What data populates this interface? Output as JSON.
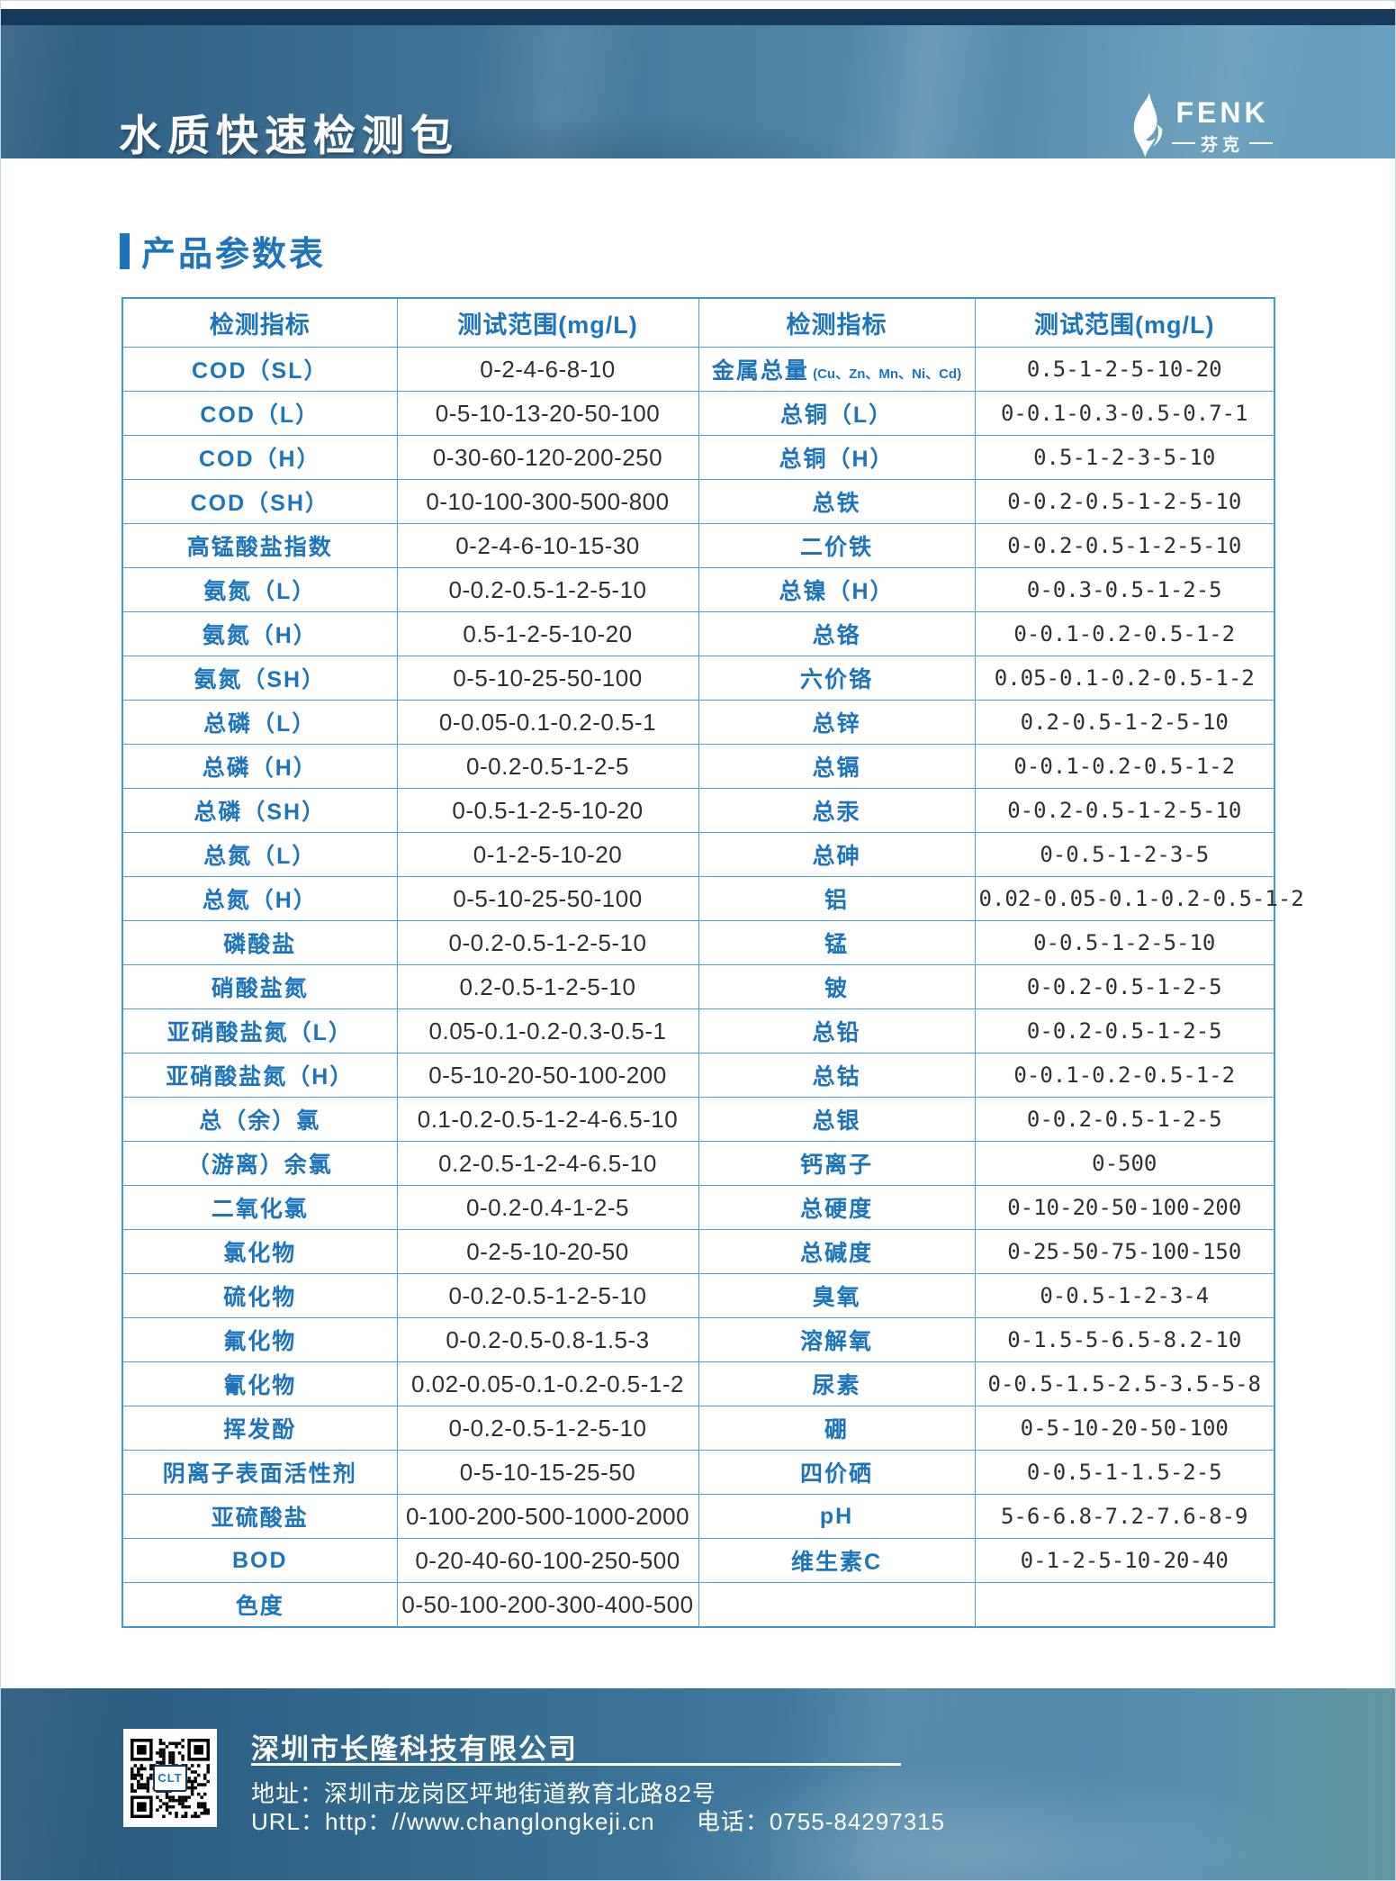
{
  "header": {
    "title": "水质快速检测包",
    "logo": {
      "name": "FENK",
      "subname": "芬克"
    }
  },
  "section": {
    "title": "产品参数表"
  },
  "table": {
    "headers": [
      "检测指标",
      "测试范围(mg/L)",
      "检测指标",
      "测试范围(mg/L)"
    ],
    "rows": [
      {
        "left_label": "COD（SL）",
        "left_range": "0-2-4-6-8-10",
        "right_label": "金属总量",
        "right_label_small": "(Cu、Zn、Mn、Ni、Cd)",
        "right_range": "0.5-1-2-5-10-20"
      },
      {
        "left_label": "COD（L）",
        "left_range": "0-5-10-13-20-50-100",
        "right_label": "总铜（L）",
        "right_label_small": "",
        "right_range": "0-0.1-0.3-0.5-0.7-1"
      },
      {
        "left_label": "COD（H）",
        "left_range": "0-30-60-120-200-250",
        "right_label": "总铜（H）",
        "right_label_small": "",
        "right_range": "0.5-1-2-3-5-10"
      },
      {
        "left_label": "COD（SH）",
        "left_range": "0-10-100-300-500-800",
        "right_label": "总铁",
        "right_label_small": "",
        "right_range": "0-0.2-0.5-1-2-5-10"
      },
      {
        "left_label": "高锰酸盐指数",
        "left_range": "0-2-4-6-10-15-30",
        "right_label": "二价铁",
        "right_label_small": "",
        "right_range": "0-0.2-0.5-1-2-5-10"
      },
      {
        "left_label": "氨氮（L）",
        "left_range": "0-0.2-0.5-1-2-5-10",
        "right_label": "总镍（H）",
        "right_label_small": "",
        "right_range": "0-0.3-0.5-1-2-5"
      },
      {
        "left_label": "氨氮（H）",
        "left_range": "0.5-1-2-5-10-20",
        "right_label": "总铬",
        "right_label_small": "",
        "right_range": "0-0.1-0.2-0.5-1-2"
      },
      {
        "left_label": "氨氮（SH）",
        "left_range": "0-5-10-25-50-100",
        "right_label": "六价铬",
        "right_label_small": "",
        "right_range": "0.05-0.1-0.2-0.5-1-2"
      },
      {
        "left_label": "总磷（L）",
        "left_range": "0-0.05-0.1-0.2-0.5-1",
        "right_label": "总锌",
        "right_label_small": "",
        "right_range": "0.2-0.5-1-2-5-10"
      },
      {
        "left_label": "总磷（H）",
        "left_range": "0-0.2-0.5-1-2-5",
        "right_label": "总镉",
        "right_label_small": "",
        "right_range": "0-0.1-0.2-0.5-1-2"
      },
      {
        "left_label": "总磷（SH）",
        "left_range": "0-0.5-1-2-5-10-20",
        "right_label": "总汞",
        "right_label_small": "",
        "right_range": "0-0.2-0.5-1-2-5-10"
      },
      {
        "left_label": "总氮（L）",
        "left_range": "0-1-2-5-10-20",
        "right_label": "总砷",
        "right_label_small": "",
        "right_range": "0-0.5-1-2-3-5"
      },
      {
        "left_label": "总氮（H）",
        "left_range": "0-5-10-25-50-100",
        "right_label": "铝",
        "right_label_small": "",
        "right_range": "0.02-0.05-0.1-0.2-0.5-1-2"
      },
      {
        "left_label": "磷酸盐",
        "left_range": "0-0.2-0.5-1-2-5-10",
        "right_label": "锰",
        "right_label_small": "",
        "right_range": "0-0.5-1-2-5-10"
      },
      {
        "left_label": "硝酸盐氮",
        "left_range": "0.2-0.5-1-2-5-10",
        "right_label": "铍",
        "right_label_small": "",
        "right_range": "0-0.2-0.5-1-2-5"
      },
      {
        "left_label": "亚硝酸盐氮（L）",
        "left_range": "0.05-0.1-0.2-0.3-0.5-1",
        "right_label": "总铅",
        "right_label_small": "",
        "right_range": "0-0.2-0.5-1-2-5"
      },
      {
        "left_label": "亚硝酸盐氮（H）",
        "left_range": "0-5-10-20-50-100-200",
        "right_label": "总钴",
        "right_label_small": "",
        "right_range": "0-0.1-0.2-0.5-1-2"
      },
      {
        "left_label": "总（余）氯",
        "left_range": "0.1-0.2-0.5-1-2-4-6.5-10",
        "right_label": "总银",
        "right_label_small": "",
        "right_range": "0-0.2-0.5-1-2-5"
      },
      {
        "left_label": "（游离）余氯",
        "left_range": "0.2-0.5-1-2-4-6.5-10",
        "right_label": "钙离子",
        "right_label_small": "",
        "right_range": "0-500"
      },
      {
        "left_label": "二氧化氯",
        "left_range": "0-0.2-0.4-1-2-5",
        "right_label": "总硬度",
        "right_label_small": "",
        "right_range": "0-10-20-50-100-200"
      },
      {
        "left_label": "氯化物",
        "left_range": "0-2-5-10-20-50",
        "right_label": "总碱度",
        "right_label_small": "",
        "right_range": "0-25-50-75-100-150"
      },
      {
        "left_label": "硫化物",
        "left_range": "0-0.2-0.5-1-2-5-10",
        "right_label": "臭氧",
        "right_label_small": "",
        "right_range": "0-0.5-1-2-3-4"
      },
      {
        "left_label": "氟化物",
        "left_range": "0-0.2-0.5-0.8-1.5-3",
        "right_label": "溶解氧",
        "right_label_small": "",
        "right_range": "0-1.5-5-6.5-8.2-10"
      },
      {
        "left_label": "氰化物",
        "left_range": "0.02-0.05-0.1-0.2-0.5-1-2",
        "right_label": "尿素",
        "right_label_small": "",
        "right_range": "0-0.5-1.5-2.5-3.5-5-8"
      },
      {
        "left_label": "挥发酚",
        "left_range": "0-0.2-0.5-1-2-5-10",
        "right_label": "硼",
        "right_label_small": "",
        "right_range": "0-5-10-20-50-100"
      },
      {
        "left_label": "阴离子表面活性剂",
        "left_range": "0-5-10-15-25-50",
        "right_label": "四价硒",
        "right_label_small": "",
        "right_range": "0-0.5-1-1.5-2-5"
      },
      {
        "left_label": "亚硫酸盐",
        "left_range": "0-100-200-500-1000-2000",
        "right_label": "pH",
        "right_label_small": "",
        "right_range": "5-6-6.8-7.2-7.6-8-9"
      },
      {
        "left_label": "BOD",
        "left_range": "0-20-40-60-100-250-500",
        "right_label": "维生素C",
        "right_label_small": "",
        "right_range": "0-1-2-5-10-20-40"
      },
      {
        "left_label": "色度",
        "left_range": "0-50-100-200-300-400-500",
        "right_label": "",
        "right_label_small": "",
        "right_range": ""
      }
    ]
  },
  "footer": {
    "company": "深圳市长隆科技有限公司",
    "address": "地址：深圳市龙岗区坪地街道教育北路82号",
    "url_label": "URL：",
    "url": "http：//www.changlongkeji.cn",
    "phone": "电话：0755-84297315",
    "qr_label": "CLT"
  },
  "colors": {
    "accent_blue": "#1c75bc",
    "table_border": "#4aa0d4",
    "navy_strip": "#16395c"
  }
}
